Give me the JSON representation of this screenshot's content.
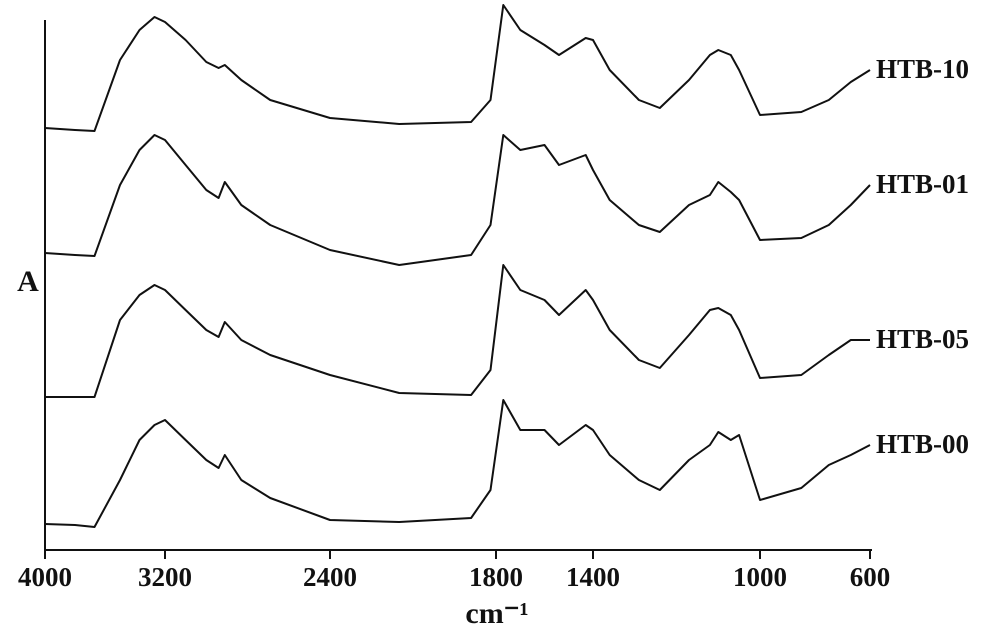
{
  "chart_data": {
    "type": "line",
    "x_label": "cm⁻¹",
    "y_label": "A",
    "x": [
      4000,
      3800,
      3670,
      3500,
      3370,
      3270,
      3200,
      3100,
      3000,
      2940,
      2910,
      2830,
      2690,
      2400,
      2150,
      1890,
      1820,
      1770,
      1700,
      1600,
      1540,
      1430,
      1400,
      1360,
      1290,
      1240,
      1170,
      1120,
      1100,
      1070,
      1050,
      1000,
      850,
      750,
      670,
      600
    ],
    "xlim": [
      4000,
      600
    ],
    "xticks": [
      4000,
      3200,
      2400,
      1800,
      1400,
      1000,
      600
    ],
    "ylim": [
      0,
      53
    ],
    "series": [
      {
        "name": "HTB-10",
        "color": "#111111",
        "values": [
          42.2,
          42,
          41.9,
          49,
          52,
          53.3,
          52.8,
          51,
          48.8,
          48.2,
          48.5,
          47,
          45,
          43.2,
          42.6,
          42.8,
          45,
          54.5,
          52,
          50.5,
          49.5,
          51.2,
          51,
          48,
          45,
          44.2,
          47,
          49.5,
          50,
          49.5,
          48,
          43.5,
          43.8,
          45,
          46.8,
          48
        ]
      },
      {
        "name": "HTB-01",
        "color": "#111111",
        "values": [
          29.7,
          29.5,
          29.4,
          36.5,
          40,
          41.5,
          41,
          38.5,
          36,
          35.2,
          36.8,
          34.5,
          32.5,
          30,
          28.5,
          29.5,
          32.5,
          41.5,
          40,
          40.5,
          38.5,
          39.5,
          38,
          35,
          32.5,
          31.8,
          34.5,
          35.5,
          36.8,
          35.8,
          35,
          31,
          31.2,
          32.5,
          34.5,
          36.5
        ]
      },
      {
        "name": "HTB-05",
        "color": "#111111",
        "values": [
          15.3,
          15.3,
          15.3,
          23,
          25.5,
          26.5,
          26,
          24,
          22,
          21.3,
          22.8,
          21,
          19.5,
          17.5,
          15.7,
          15.5,
          18,
          28.5,
          26,
          25,
          23.5,
          26,
          25,
          22,
          19,
          18.2,
          21.5,
          24,
          24.2,
          23.5,
          22,
          17.2,
          17.5,
          19.5,
          21,
          21
        ]
      },
      {
        "name": "HTB-00",
        "color": "#111111",
        "values": [
          2.6,
          2.5,
          2.3,
          7,
          11,
          12.5,
          13,
          11,
          9,
          8.2,
          9.5,
          7,
          5.2,
          3,
          2.8,
          3.2,
          6,
          15,
          12,
          12,
          10.5,
          12.5,
          12,
          9.5,
          7,
          6,
          9,
          10.5,
          11.8,
          11,
          11.5,
          5,
          6.2,
          8.5,
          9.5,
          10.5
        ]
      }
    ]
  }
}
